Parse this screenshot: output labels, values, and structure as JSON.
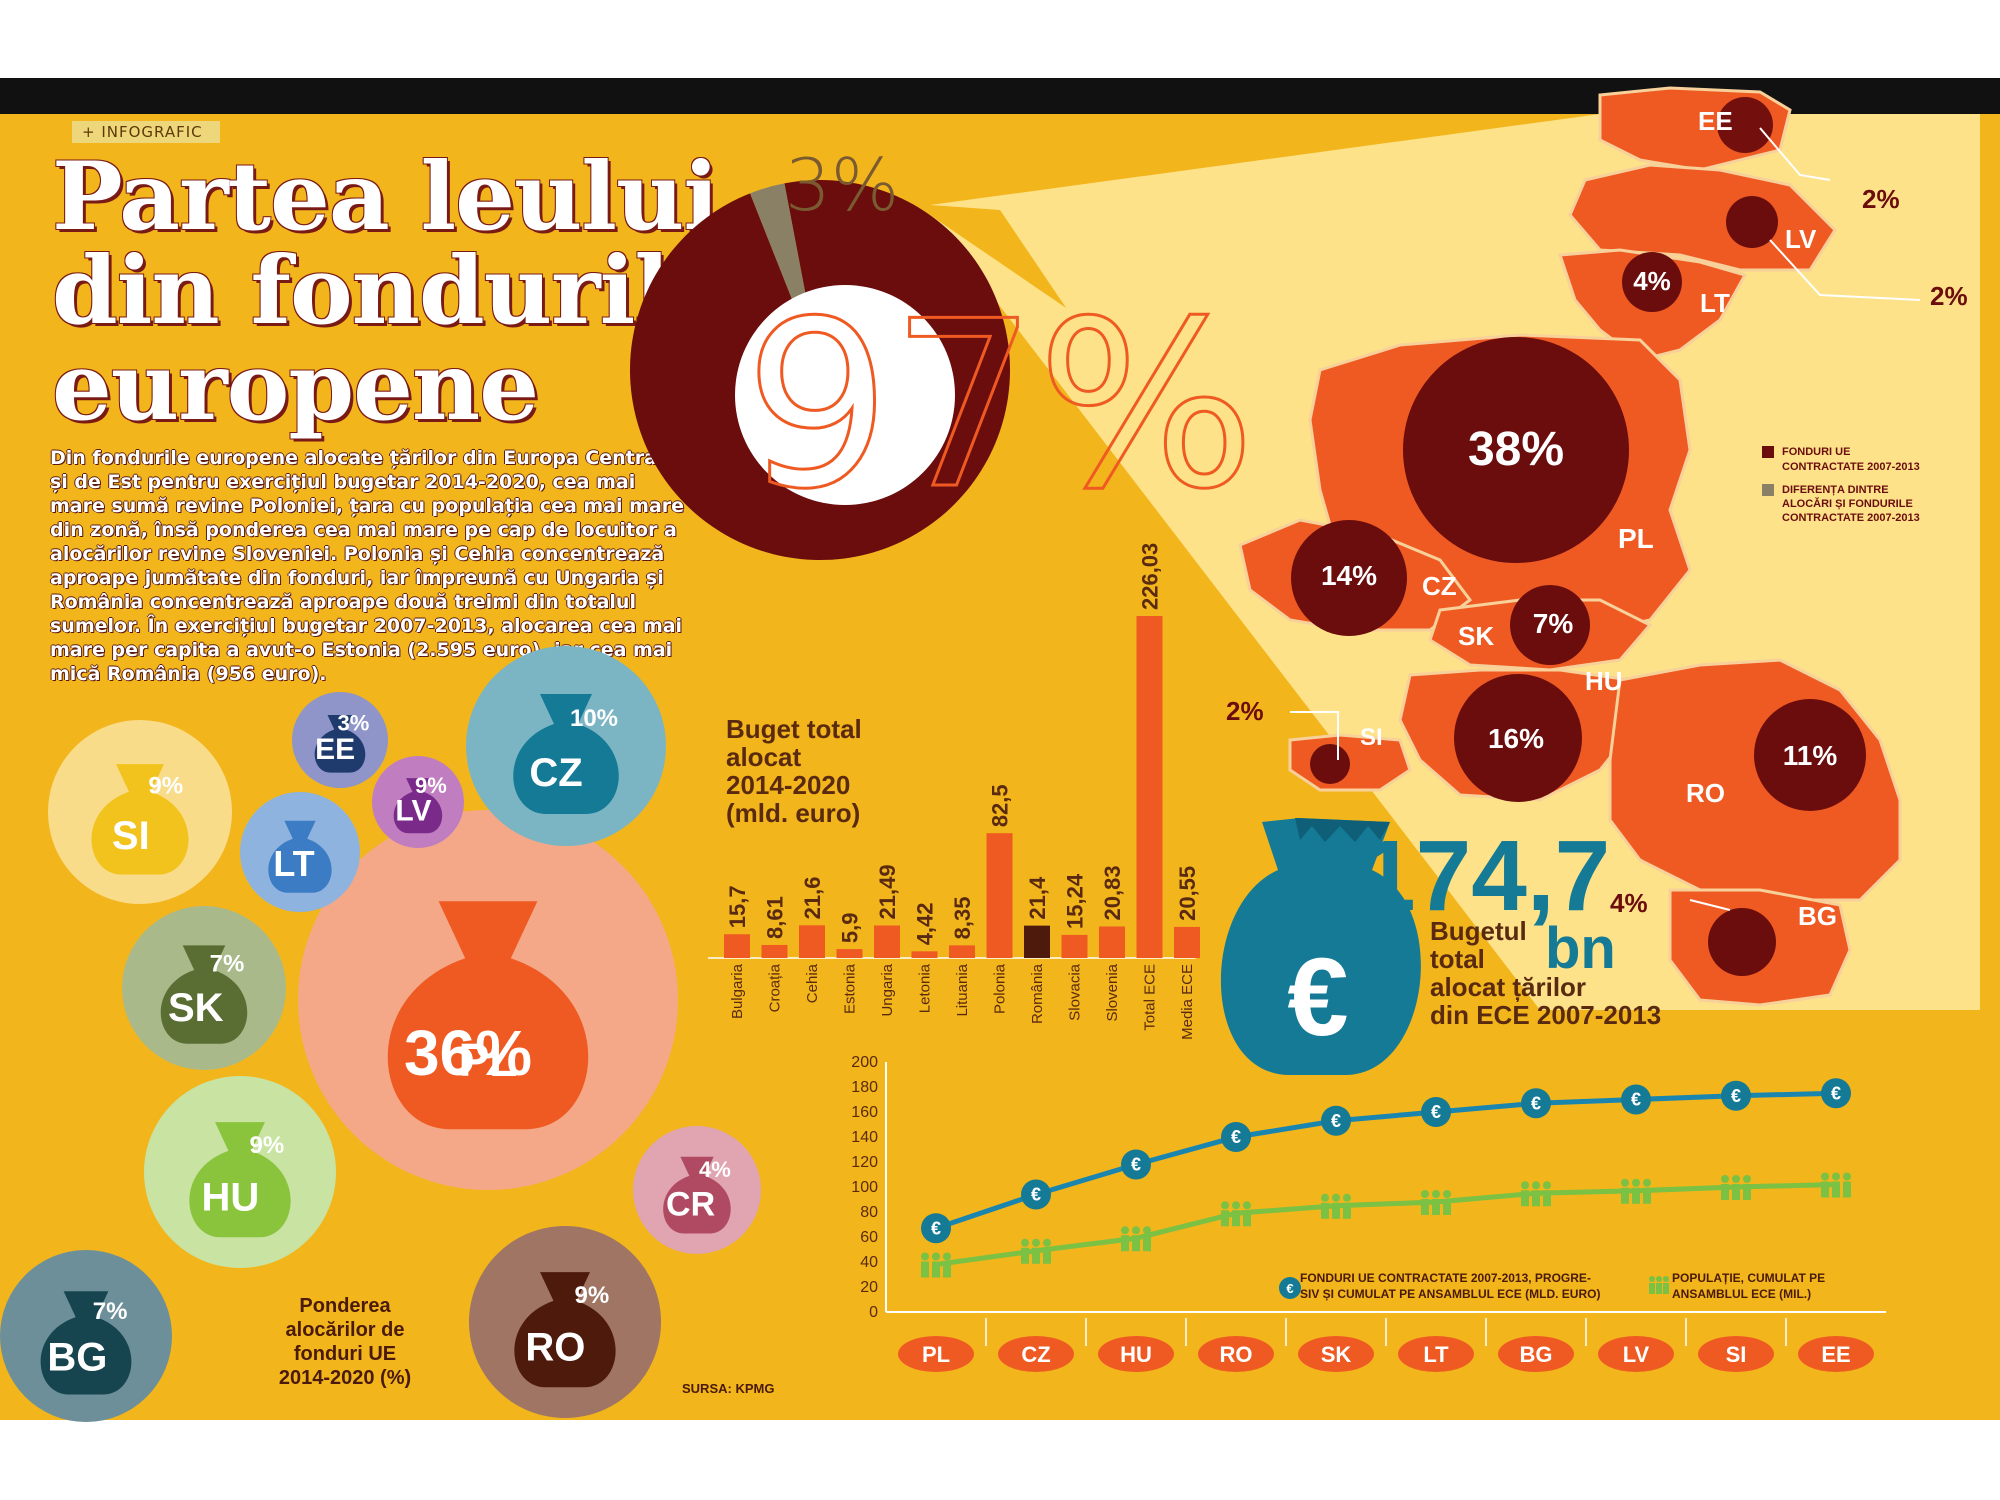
{
  "header": {
    "tag": "+ INFOGRAFIC"
  },
  "title_lines": [
    "Partea leului",
    "din fondurile",
    "europene"
  ],
  "intro": "Din fondurile europene alocate țărilor din Europa Centrală și de Est pentru exercițiul bugetar 2014-2020, cea mai mare sumă revine Poloniei, țara cu populația cea mai mare din zonă, însă ponderea cea mai mare pe cap de locuitor a alocărilor revine Sloveniei. Polonia și Cehia concentrează aproape jumătate din fonduri, iar împreună cu Ungaria și România concentrează aproape două treimi din totalul sumelor. În exercițiul bugetar 2007-2013, alocarea cea mai mare per capita a avut-o Estonia (2.595 euro), iar cea mai mică România (956 euro).",
  "colors": {
    "background": "#f2b51c",
    "dark_red": "#6b0d0d",
    "orange": "#ef5a22",
    "gray": "#8a8066",
    "teal": "#157a95",
    "green": "#7bc143"
  },
  "chart_data": [
    {
      "type": "pie",
      "slices": [
        {
          "label": "97%",
          "value": 97,
          "color": "#6b0d0d"
        },
        {
          "label": "3%",
          "value": 3,
          "color": "#8a8066"
        }
      ],
      "center_label": "97%",
      "title": ""
    },
    {
      "type": "bar",
      "title": "Buget total alocat 2014-2020 (mld. euro)",
      "categories": [
        "Bulgaria",
        "Croația",
        "Cehia",
        "Estonia",
        "Ungaria",
        "Letonia",
        "Lituania",
        "Polonia",
        "România",
        "Slovacia",
        "Slovenia",
        "Total ECE",
        "Media ECE"
      ],
      "values": [
        15.7,
        8.61,
        21.6,
        5.9,
        21.49,
        4.42,
        8.35,
        82.5,
        21.4,
        15.24,
        20.83,
        226.03,
        20.55
      ],
      "value_labels": [
        "15,7",
        "8,61",
        "21,6",
        "5,9",
        "21,49",
        "4,42",
        "8,35",
        "82,5",
        "21,4",
        "15,24",
        "20,83",
        "226,03",
        "20,55"
      ],
      "highlight": "România",
      "ylim": [
        0,
        230
      ]
    },
    {
      "type": "bubble",
      "title": "Ponderea alocărilor de fonduri UE 2014-2020 (%)",
      "items": [
        {
          "code": "PL",
          "value": 36,
          "label": "36%",
          "color": "#f4a888",
          "bag": "#ef5a22"
        },
        {
          "code": "CZ",
          "value": 10,
          "label": "10%",
          "color": "#7bb5c3",
          "bag": "#157a95"
        },
        {
          "code": "EE",
          "value": 3,
          "label": "3%",
          "color": "#8f95c8",
          "bag": "#1f3b6e"
        },
        {
          "code": "LV",
          "value": 9,
          "label": "9%",
          "color": "#c07ec0",
          "bag": "#7a2b8a"
        },
        {
          "code": "SI",
          "value": 9,
          "label": "9%",
          "color": "#f9dc8a",
          "bag": "#f2c31c"
        },
        {
          "code": "LT",
          "value": 3,
          "label": "",
          "color": "#8fb3df",
          "bag": "#3c7cc4"
        },
        {
          "code": "SK",
          "value": 7,
          "label": "7%",
          "color": "#a9b98a",
          "bag": "#5a6e34"
        },
        {
          "code": "HU",
          "value": 9,
          "label": "9%",
          "color": "#c9e3a2",
          "bag": "#8ac43d"
        },
        {
          "code": "CR",
          "value": 4,
          "label": "4%",
          "color": "#e0a5b0",
          "bag": "#b04a62"
        },
        {
          "code": "RO",
          "value": 9,
          "label": "9%",
          "color": "#a07564",
          "bag": "#4e1a0c"
        },
        {
          "code": "BG",
          "value": 7,
          "label": "7%",
          "color": "#6d8f99",
          "bag": "#16444f"
        }
      ]
    },
    {
      "type": "line",
      "categories": [
        "PL",
        "CZ",
        "HU",
        "RO",
        "SK",
        "LT",
        "BG",
        "LV",
        "SI",
        "EE"
      ],
      "series": [
        {
          "name": "FONDURI UE CONTRACTATE 2007-2013, PROGRESIV ȘI CUMULAT PE ANSAMBLUL ECE (MLD. EURO)",
          "values": [
            67,
            94,
            118,
            140,
            153,
            160,
            167,
            170,
            173,
            175
          ],
          "color": "#1a86b0"
        },
        {
          "name": "POPULAȚIE, CUMULAT PE ANSAMBLUL ECE (MIL.)",
          "values": [
            38,
            49,
            59,
            79,
            85,
            88,
            95,
            97,
            100,
            102
          ],
          "color": "#7bc143"
        }
      ],
      "ylim": [
        0,
        200
      ],
      "yticks": [
        0,
        20,
        40,
        60,
        80,
        100,
        120,
        140,
        160,
        180,
        200
      ]
    },
    {
      "type": "map",
      "legend": [
        {
          "label": "FONDURI UE CONTRACTATE 2007-2013",
          "color": "#6b0d0d"
        },
        {
          "label": "DIFERENȚA DINTRE ALOCĂRI ȘI FONDURILE CONTRACTATE 2007-2013",
          "color": "#8a8066"
        }
      ],
      "regions": [
        {
          "code": "EE",
          "circle_label": "",
          "callout": "2%"
        },
        {
          "code": "LV",
          "circle_label": "",
          "callout": "2%"
        },
        {
          "code": "LT",
          "circle_label": "4%",
          "callout": ""
        },
        {
          "code": "PL",
          "circle_label": "38%",
          "callout": ""
        },
        {
          "code": "CZ",
          "circle_label": "14%",
          "callout": ""
        },
        {
          "code": "SK",
          "circle_label": "7%",
          "callout": ""
        },
        {
          "code": "HU",
          "circle_label": "16%",
          "callout": ""
        },
        {
          "code": "SI",
          "circle_label": "",
          "callout": "2%"
        },
        {
          "code": "RO",
          "circle_label": "11%",
          "callout": ""
        },
        {
          "code": "BG",
          "circle_label": "",
          "callout": "4%"
        }
      ]
    }
  ],
  "total_callout": {
    "amount": "174,7",
    "unit": "bn",
    "line1": "Bugetul",
    "line2": "total",
    "line3": "alocat țărilor",
    "line4": "din ECE 2007-2013"
  },
  "source": "SURSA: KPMG"
}
